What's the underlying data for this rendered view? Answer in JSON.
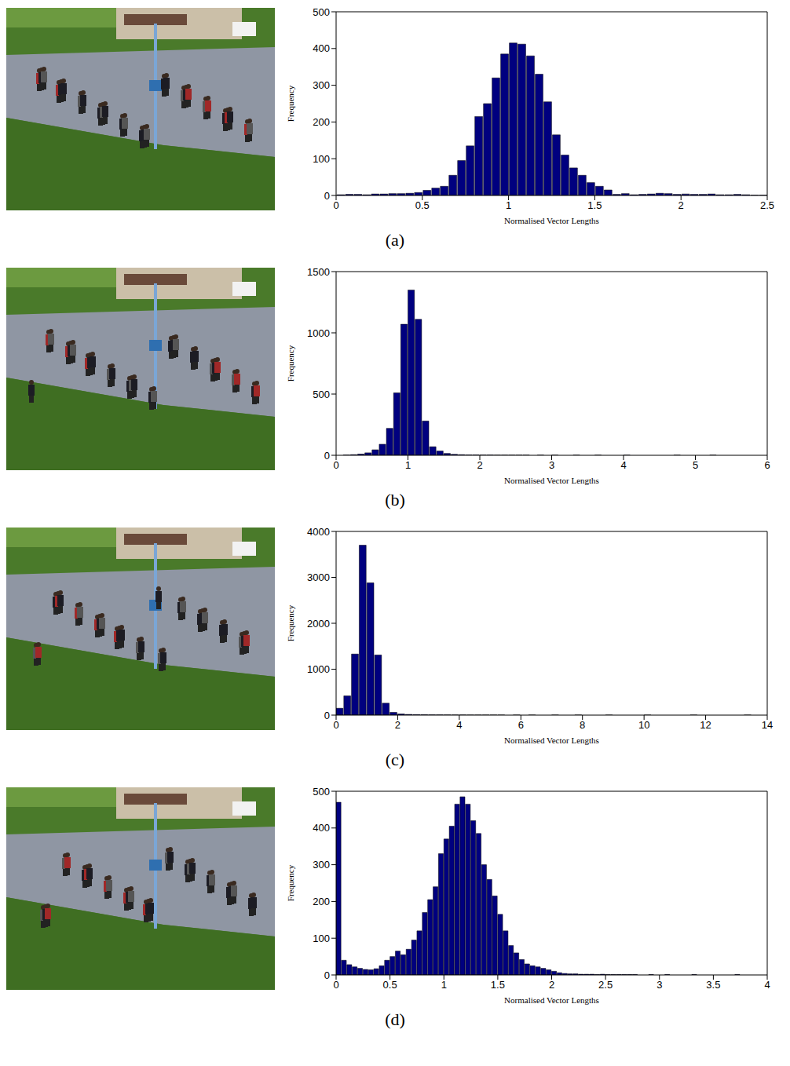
{
  "chart_data": [
    {
      "type": "histogram",
      "caption": "(a)",
      "xlabel": "Normalised Vector Lengths",
      "ylabel": "Frequency",
      "color": "#00007f",
      "bins": [
        0,
        0.05,
        0.1,
        0.15,
        0.2,
        0.25,
        0.3,
        0.35,
        0.4,
        0.45,
        0.5,
        0.55,
        0.6,
        0.65,
        0.7,
        0.75,
        0.8,
        0.85,
        0.9,
        0.95,
        1,
        1.05,
        1.1,
        1.15,
        1.2,
        1.25,
        1.3,
        1.35,
        1.4,
        1.45,
        1.5,
        1.55,
        1.6,
        1.65,
        1.7,
        1.75,
        1.8,
        1.85,
        1.9,
        1.95,
        2,
        2.05,
        2.1,
        2.15,
        2.2,
        2.25,
        2.3,
        2.35,
        2.4,
        2.45,
        2.5
      ],
      "values": [
        2,
        3,
        3,
        2,
        4,
        4,
        5,
        5,
        6,
        8,
        14,
        20,
        25,
        55,
        95,
        135,
        215,
        250,
        320,
        385,
        415,
        412,
        380,
        330,
        255,
        165,
        110,
        75,
        55,
        35,
        25,
        15,
        3,
        5,
        2,
        3,
        4,
        6,
        5,
        3,
        4,
        3,
        3,
        4,
        2,
        2,
        3,
        2,
        1,
        1
      ],
      "xlim": [
        0,
        2.5
      ],
      "xticks": [
        0,
        0.5,
        1,
        1.5,
        2,
        2.5
      ],
      "ylim": [
        0,
        500
      ],
      "yticks": [
        0,
        100,
        200,
        300,
        400,
        500
      ]
    },
    {
      "type": "histogram",
      "caption": "(b)",
      "xlabel": "Normalised Vector Lengths",
      "ylabel": "Frequency",
      "color": "#00007f",
      "bins": [
        0,
        0.1,
        0.2,
        0.3,
        0.4,
        0.5,
        0.6,
        0.7,
        0.8,
        0.9,
        1,
        1.1,
        1.2,
        1.3,
        1.4,
        1.5,
        1.6,
        1.7,
        1.8,
        1.9,
        2,
        2.1,
        2.2,
        2.3,
        2.4,
        2.5,
        2.6,
        2.7,
        2.8,
        2.9,
        3,
        3.1,
        3.2,
        3.3,
        3.4,
        3.5,
        3.6,
        3.7,
        3.8,
        3.9,
        4,
        4.1,
        4.2,
        4.3,
        4.4,
        4.5,
        4.6,
        4.7,
        4.8,
        4.9,
        5,
        5.1,
        5.2,
        5.3,
        5.4,
        5.5,
        5.6,
        5.7,
        5.8,
        5.9,
        6
      ],
      "values": [
        0,
        2,
        5,
        10,
        20,
        45,
        90,
        220,
        510,
        1070,
        1350,
        1110,
        280,
        70,
        35,
        15,
        8,
        5,
        3,
        3,
        2,
        2,
        1,
        1,
        1,
        1,
        1,
        0,
        1,
        0,
        1,
        0,
        0,
        1,
        0,
        0,
        1,
        0,
        0,
        0,
        1,
        0,
        0,
        0,
        0,
        0,
        0,
        1,
        0,
        0,
        0,
        0,
        1,
        0,
        0,
        0,
        0,
        0,
        0,
        0
      ],
      "xlim": [
        0,
        6
      ],
      "xticks": [
        0,
        1,
        2,
        3,
        4,
        5,
        6
      ],
      "ylim": [
        0,
        1500
      ],
      "yticks": [
        0,
        500,
        1000,
        1500
      ]
    },
    {
      "type": "histogram",
      "caption": "(c)",
      "xlabel": "Normalised Vector Lengths",
      "ylabel": "Frequency",
      "color": "#00007f",
      "bins": [
        0,
        0.25,
        0.5,
        0.75,
        1,
        1.25,
        1.5,
        1.75,
        2,
        2.25,
        2.5,
        2.75,
        3,
        3.25,
        3.5,
        3.75,
        4,
        4.25,
        4.5,
        4.75,
        5,
        5.25,
        5.5,
        5.75,
        6,
        6.25,
        6.5,
        6.75,
        7,
        7.25,
        7.5,
        7.75,
        8,
        8.25,
        8.5,
        8.75,
        9,
        9.25,
        9.5,
        9.75,
        10,
        10.25,
        10.5,
        10.75,
        11,
        11.25,
        11.5,
        11.75,
        12,
        12.25,
        12.5,
        12.75,
        13,
        13.25,
        13.5,
        13.75,
        14
      ],
      "values": [
        150,
        420,
        1330,
        3700,
        2880,
        1310,
        260,
        60,
        25,
        15,
        10,
        8,
        5,
        4,
        3,
        2,
        2,
        1,
        1,
        1,
        1,
        1,
        0,
        1,
        0,
        1,
        0,
        0,
        1,
        0,
        0,
        1,
        0,
        0,
        0,
        1,
        0,
        0,
        0,
        0,
        1,
        0,
        0,
        0,
        0,
        0,
        1,
        0,
        0,
        0,
        0,
        0,
        0,
        1,
        0,
        0
      ],
      "xlim": [
        0,
        14
      ],
      "xticks": [
        0,
        2,
        4,
        6,
        8,
        10,
        12,
        14
      ],
      "ylim": [
        0,
        4000
      ],
      "yticks": [
        0,
        1000,
        2000,
        3000,
        4000
      ]
    },
    {
      "type": "histogram",
      "caption": "(d)",
      "xlabel": "Normalised Vector Lengths",
      "ylabel": "Frequency",
      "color": "#00007f",
      "bins": [
        0,
        0.05,
        0.1,
        0.15,
        0.2,
        0.25,
        0.3,
        0.35,
        0.4,
        0.45,
        0.5,
        0.55,
        0.6,
        0.65,
        0.7,
        0.75,
        0.8,
        0.85,
        0.9,
        0.95,
        1,
        1.05,
        1.1,
        1.15,
        1.2,
        1.25,
        1.3,
        1.35,
        1.4,
        1.45,
        1.5,
        1.55,
        1.6,
        1.65,
        1.7,
        1.75,
        1.8,
        1.85,
        1.9,
        1.95,
        2,
        2.05,
        2.1,
        2.15,
        2.2,
        2.25,
        2.3,
        2.35,
        2.4,
        2.45,
        2.5,
        2.55,
        2.6,
        2.65,
        2.7,
        2.75,
        2.8,
        2.85,
        2.9,
        2.95,
        3,
        3.05,
        3.1,
        3.15,
        3.2,
        3.25,
        3.3,
        3.35,
        3.4,
        3.45,
        3.5,
        3.55,
        3.6,
        3.65,
        3.7,
        3.75,
        3.8,
        3.85,
        3.9,
        3.95,
        4
      ],
      "values": [
        470,
        40,
        28,
        22,
        18,
        15,
        14,
        17,
        25,
        40,
        50,
        65,
        55,
        70,
        95,
        120,
        170,
        205,
        240,
        330,
        370,
        405,
        465,
        485,
        465,
        420,
        385,
        300,
        260,
        215,
        165,
        120,
        80,
        60,
        42,
        30,
        25,
        22,
        18,
        14,
        10,
        6,
        4,
        3,
        3,
        2,
        2,
        2,
        1,
        2,
        1,
        1,
        1,
        1,
        1,
        1,
        0,
        0,
        1,
        0,
        0,
        1,
        0,
        0,
        0,
        0,
        1,
        0,
        0,
        0,
        0,
        0,
        0,
        0,
        1,
        0,
        0,
        0,
        0,
        0
      ],
      "xlim": [
        0,
        4
      ],
      "xticks": [
        0,
        0.5,
        1,
        1.5,
        2,
        2.5,
        3,
        3.5,
        4
      ],
      "ylim": [
        0,
        500
      ],
      "yticks": [
        0,
        100,
        200,
        300,
        400,
        500
      ]
    }
  ]
}
